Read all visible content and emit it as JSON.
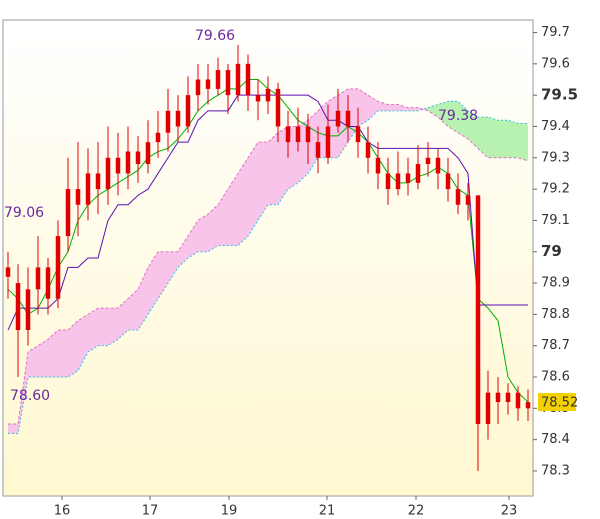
{
  "chart_data": {
    "type": "candlestick",
    "xlim": [
      -0.5,
      52.5
    ],
    "xticks": [
      {
        "value": 5.4,
        "label": "16"
      },
      {
        "value": 14.2,
        "label": "17"
      },
      {
        "value": 22.1,
        "label": "19"
      },
      {
        "value": 31.9,
        "label": "21"
      },
      {
        "value": 40.8,
        "label": "22"
      },
      {
        "value": 50.1,
        "label": "23"
      }
    ],
    "ylim": [
      78.22,
      79.74
    ],
    "yticks": [
      78.3,
      78.4,
      78.5,
      78.6,
      78.7,
      78.8,
      78.9,
      79,
      79.1,
      79.2,
      79.3,
      79.4,
      79.5,
      79.6,
      79.7
    ],
    "major_yticks": [
      79,
      79.5
    ],
    "candle_color": "#e00000",
    "open": [
      78.95,
      78.9,
      78.75,
      78.88,
      78.95,
      78.85,
      79.05,
      79.2,
      79.15,
      79.25,
      79.2,
      79.3,
      79.25,
      79.32,
      79.28,
      79.35,
      79.38,
      79.45,
      79.4,
      79.5,
      79.55,
      79.52,
      79.58,
      79.5,
      79.6,
      79.5,
      79.48,
      79.52,
      79.4,
      79.35,
      79.4,
      79.35,
      79.3,
      79.4,
      79.45,
      79.4,
      79.35,
      79.3,
      79.25,
      79.2,
      79.25,
      79.22,
      79.28,
      79.3,
      79.25,
      79.2,
      79.15,
      79.18,
      78.45,
      78.55,
      78.52,
      78.55,
      78.5
    ],
    "high": [
      79.0,
      78.96,
      78.95,
      79.05,
      78.98,
      79.1,
      79.3,
      79.35,
      79.33,
      79.35,
      79.4,
      79.38,
      79.4,
      79.37,
      79.42,
      79.45,
      79.52,
      79.5,
      79.56,
      79.6,
      79.6,
      79.62,
      79.6,
      79.66,
      79.63,
      79.55,
      79.56,
      79.54,
      79.45,
      79.46,
      79.44,
      79.4,
      79.47,
      79.52,
      79.5,
      79.46,
      79.4,
      79.35,
      79.3,
      79.32,
      79.3,
      79.34,
      79.35,
      79.33,
      79.3,
      79.25,
      79.22,
      79.18,
      78.62,
      78.6,
      78.58,
      78.57,
      78.56
    ],
    "low": [
      78.85,
      78.6,
      78.7,
      78.8,
      78.8,
      78.82,
      79.0,
      79.05,
      79.1,
      79.12,
      79.15,
      79.18,
      79.2,
      79.22,
      79.25,
      79.3,
      79.32,
      79.35,
      79.38,
      79.45,
      79.47,
      79.5,
      79.44,
      79.48,
      79.45,
      79.42,
      79.44,
      79.35,
      79.3,
      79.32,
      79.28,
      79.25,
      79.28,
      79.38,
      79.35,
      79.3,
      79.25,
      79.2,
      79.15,
      79.18,
      79.18,
      79.2,
      79.24,
      79.2,
      79.16,
      79.12,
      79.1,
      78.3,
      78.4,
      78.45,
      78.48,
      78.46,
      78.46
    ],
    "close": [
      78.92,
      78.75,
      78.88,
      78.95,
      78.85,
      79.05,
      79.2,
      79.15,
      79.25,
      79.2,
      79.3,
      79.25,
      79.32,
      79.28,
      79.35,
      79.38,
      79.45,
      79.4,
      79.5,
      79.55,
      79.52,
      79.58,
      79.5,
      79.6,
      79.5,
      79.48,
      79.52,
      79.4,
      79.35,
      79.4,
      79.35,
      79.3,
      79.4,
      79.45,
      79.4,
      79.35,
      79.3,
      79.25,
      79.2,
      79.25,
      79.22,
      79.28,
      79.3,
      79.25,
      79.2,
      79.15,
      79.18,
      78.45,
      78.55,
      78.52,
      78.55,
      78.5,
      78.52
    ],
    "lines": [
      {
        "color": "#00b000",
        "values": [
          78.88,
          78.85,
          78.8,
          78.82,
          78.88,
          78.95,
          79.0,
          79.1,
          79.15,
          79.18,
          79.2,
          79.22,
          79.24,
          79.26,
          79.3,
          79.32,
          79.33,
          79.36,
          79.4,
          79.45,
          79.48,
          79.5,
          79.52,
          79.52,
          79.55,
          79.55,
          79.52,
          79.5,
          79.46,
          79.42,
          79.4,
          79.38,
          79.37,
          79.37,
          79.4,
          79.38,
          79.35,
          79.3,
          79.25,
          79.22,
          79.22,
          79.24,
          79.25,
          79.27,
          79.25,
          79.2,
          79.18,
          78.85,
          78.82,
          78.78,
          78.6,
          78.55,
          78.52
        ]
      },
      {
        "color": "#5a10b0",
        "values": [
          78.75,
          78.82,
          78.82,
          78.82,
          78.82,
          78.85,
          78.95,
          78.95,
          78.98,
          78.98,
          79.1,
          79.15,
          79.15,
          79.18,
          79.2,
          79.25,
          79.3,
          79.35,
          79.35,
          79.42,
          79.45,
          79.45,
          79.45,
          79.5,
          79.5,
          79.5,
          79.5,
          79.5,
          79.5,
          79.5,
          79.5,
          79.48,
          79.42,
          79.42,
          79.4,
          79.4,
          79.35,
          79.33,
          79.33,
          79.33,
          79.33,
          79.33,
          79.33,
          79.33,
          79.33,
          79.3,
          79.25,
          78.83,
          78.83,
          78.83,
          78.83,
          78.83,
          78.83
        ]
      }
    ],
    "cloud": {
      "span_a": [
        78.42,
        78.42,
        78.6,
        78.6,
        78.6,
        78.6,
        78.6,
        78.62,
        78.68,
        78.7,
        78.7,
        78.72,
        78.75,
        78.75,
        78.8,
        78.85,
        78.9,
        78.95,
        78.98,
        79.0,
        79.0,
        79.02,
        79.02,
        79.02,
        79.05,
        79.1,
        79.15,
        79.15,
        79.2,
        79.22,
        79.25,
        79.3,
        79.3,
        79.3,
        79.35,
        79.4,
        79.42,
        79.45,
        79.45,
        79.45,
        79.45,
        79.45,
        79.46,
        79.47,
        79.48,
        79.48,
        79.45,
        79.43,
        79.43,
        79.42,
        79.42,
        79.41,
        79.41
      ],
      "span_b": [
        78.45,
        78.45,
        78.68,
        78.7,
        78.72,
        78.75,
        78.75,
        78.78,
        78.8,
        78.82,
        78.82,
        78.82,
        78.85,
        78.88,
        78.95,
        79.0,
        79.0,
        79.0,
        79.05,
        79.1,
        79.12,
        79.15,
        79.2,
        79.25,
        79.3,
        79.35,
        79.35,
        79.38,
        79.4,
        79.4,
        79.42,
        79.45,
        79.48,
        79.5,
        79.52,
        79.52,
        79.5,
        79.48,
        79.47,
        79.47,
        79.46,
        79.46,
        79.45,
        79.43,
        79.4,
        79.38,
        79.36,
        79.33,
        79.3,
        79.3,
        79.3,
        79.3,
        79.29
      ],
      "bear_color": "#f9c4ea",
      "bull_color": "#b8f2b0",
      "span_a_color": "#30c0e0",
      "span_b_color": "#e070c8"
    },
    "annotations": [
      "79.66",
      "79.06",
      "78.60",
      "79.38"
    ],
    "last_price_label": "78.52",
    "last_price_color": "#f5d000"
  }
}
